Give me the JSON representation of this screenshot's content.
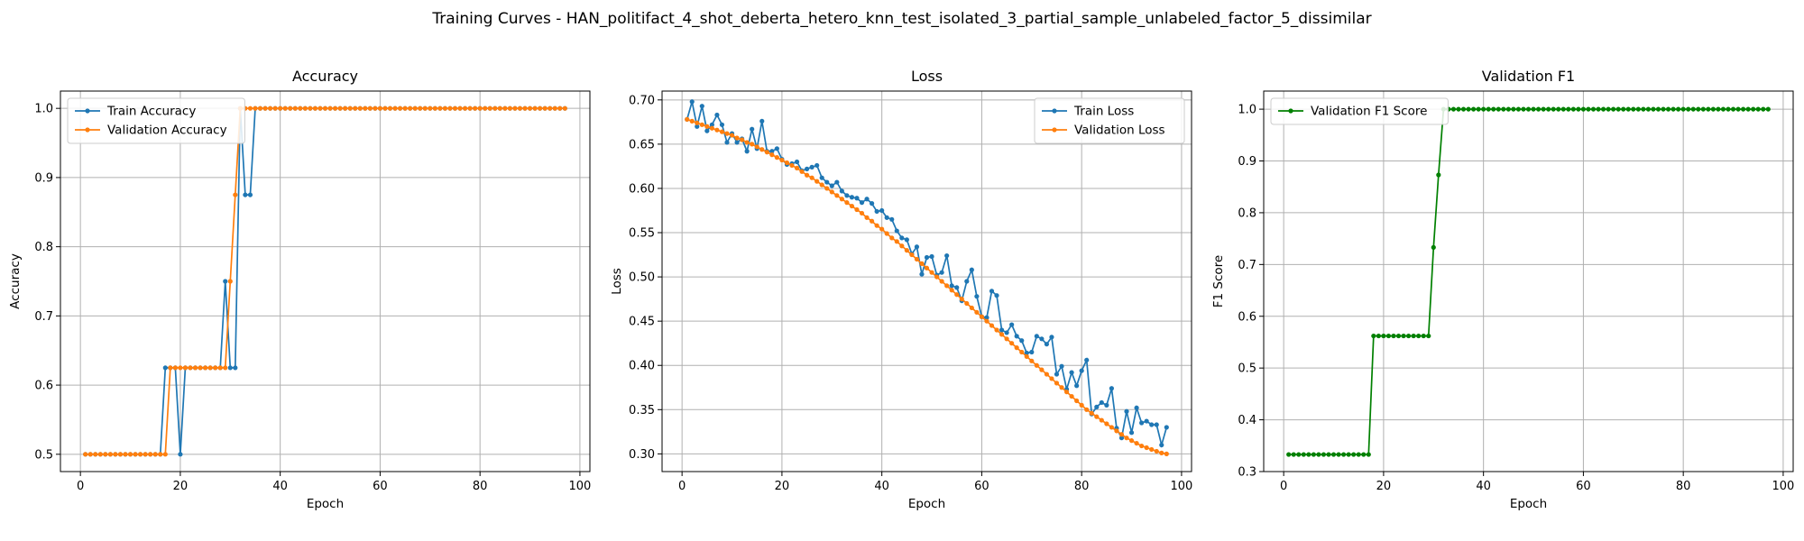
{
  "figure": {
    "suptitle": "Training Curves - HAN_politifact_4_shot_deberta_hetero_knn_test_isolated_3_partial_sample_unlabeled_factor_5_dissimilar"
  },
  "colors": {
    "train": "#1f77b4",
    "validation": "#ff7f0e",
    "f1": "#008000"
  },
  "chart_data": [
    {
      "type": "line",
      "title": "Accuracy",
      "xlabel": "Epoch",
      "ylabel": "Accuracy",
      "xlim": [
        -4,
        102
      ],
      "ylim": [
        0.475,
        1.025
      ],
      "xticks": [
        0,
        20,
        40,
        60,
        80,
        100
      ],
      "yticks": [
        0.5,
        0.6,
        0.7,
        0.8,
        0.9,
        1.0
      ],
      "ytick_labels": [
        "0.5",
        "0.6",
        "0.7",
        "0.8",
        "0.9",
        "1.0"
      ],
      "grid": true,
      "legend": "upper left",
      "series": [
        {
          "name": "Train Accuracy",
          "color": "#1f77b4",
          "x": [
            1,
            2,
            3,
            4,
            5,
            6,
            7,
            8,
            9,
            10,
            11,
            12,
            13,
            14,
            15,
            16,
            17,
            18,
            19,
            20,
            21,
            22,
            23,
            24,
            25,
            26,
            27,
            28,
            29,
            30,
            31,
            32,
            33,
            34,
            35,
            36,
            37,
            38,
            39,
            40,
            41,
            42,
            43,
            44,
            45,
            46,
            47,
            48,
            49,
            50,
            51,
            52,
            53,
            54,
            55,
            56,
            57,
            58,
            59,
            60,
            61,
            62,
            63,
            64,
            65,
            66,
            67,
            68,
            69,
            70,
            71,
            72,
            73,
            74,
            75,
            76,
            77,
            78,
            79,
            80,
            81,
            82,
            83,
            84,
            85,
            86,
            87,
            88,
            89,
            90,
            91,
            92,
            93,
            94,
            95,
            96,
            97
          ],
          "y": [
            0.5,
            0.5,
            0.5,
            0.5,
            0.5,
            0.5,
            0.5,
            0.5,
            0.5,
            0.5,
            0.5,
            0.5,
            0.5,
            0.5,
            0.5,
            0.5,
            0.625,
            0.625,
            0.625,
            0.5,
            0.625,
            0.625,
            0.625,
            0.625,
            0.625,
            0.625,
            0.625,
            0.625,
            0.75,
            0.625,
            0.625,
            1.0,
            0.875,
            0.875,
            1.0,
            1.0,
            1.0,
            1.0,
            1.0,
            1.0,
            1.0,
            1.0,
            1.0,
            1.0,
            1.0,
            1.0,
            1.0,
            1.0,
            1.0,
            1.0,
            1.0,
            1.0,
            1.0,
            1.0,
            1.0,
            1.0,
            1.0,
            1.0,
            1.0,
            1.0,
            1.0,
            1.0,
            1.0,
            1.0,
            1.0,
            1.0,
            1.0,
            1.0,
            1.0,
            1.0,
            1.0,
            1.0,
            1.0,
            1.0,
            1.0,
            1.0,
            1.0,
            1.0,
            1.0,
            1.0,
            1.0,
            1.0,
            1.0,
            1.0,
            1.0,
            1.0,
            1.0,
            1.0,
            1.0,
            1.0,
            1.0,
            1.0,
            1.0,
            1.0,
            1.0,
            1.0,
            1.0
          ]
        },
        {
          "name": "Validation Accuracy",
          "color": "#ff7f0e",
          "x": [
            1,
            2,
            3,
            4,
            5,
            6,
            7,
            8,
            9,
            10,
            11,
            12,
            13,
            14,
            15,
            16,
            17,
            18,
            19,
            20,
            21,
            22,
            23,
            24,
            25,
            26,
            27,
            28,
            29,
            30,
            31,
            32,
            33,
            34,
            35,
            36,
            37,
            38,
            39,
            40,
            41,
            42,
            43,
            44,
            45,
            46,
            47,
            48,
            49,
            50,
            51,
            52,
            53,
            54,
            55,
            56,
            57,
            58,
            59,
            60,
            61,
            62,
            63,
            64,
            65,
            66,
            67,
            68,
            69,
            70,
            71,
            72,
            73,
            74,
            75,
            76,
            77,
            78,
            79,
            80,
            81,
            82,
            83,
            84,
            85,
            86,
            87,
            88,
            89,
            90,
            91,
            92,
            93,
            94,
            95,
            96,
            97
          ],
          "y": [
            0.5,
            0.5,
            0.5,
            0.5,
            0.5,
            0.5,
            0.5,
            0.5,
            0.5,
            0.5,
            0.5,
            0.5,
            0.5,
            0.5,
            0.5,
            0.5,
            0.5,
            0.625,
            0.625,
            0.625,
            0.625,
            0.625,
            0.625,
            0.625,
            0.625,
            0.625,
            0.625,
            0.625,
            0.625,
            0.75,
            0.875,
            1.0,
            1.0,
            1.0,
            1.0,
            1.0,
            1.0,
            1.0,
            1.0,
            1.0,
            1.0,
            1.0,
            1.0,
            1.0,
            1.0,
            1.0,
            1.0,
            1.0,
            1.0,
            1.0,
            1.0,
            1.0,
            1.0,
            1.0,
            1.0,
            1.0,
            1.0,
            1.0,
            1.0,
            1.0,
            1.0,
            1.0,
            1.0,
            1.0,
            1.0,
            1.0,
            1.0,
            1.0,
            1.0,
            1.0,
            1.0,
            1.0,
            1.0,
            1.0,
            1.0,
            1.0,
            1.0,
            1.0,
            1.0,
            1.0,
            1.0,
            1.0,
            1.0,
            1.0,
            1.0,
            1.0,
            1.0,
            1.0,
            1.0,
            1.0,
            1.0,
            1.0,
            1.0,
            1.0,
            1.0,
            1.0,
            1.0
          ]
        }
      ]
    },
    {
      "type": "line",
      "title": "Loss",
      "xlabel": "Epoch",
      "ylabel": "Loss",
      "xlim": [
        -4,
        102
      ],
      "ylim": [
        0.28,
        0.71
      ],
      "xticks": [
        0,
        20,
        40,
        60,
        80,
        100
      ],
      "yticks": [
        0.3,
        0.35,
        0.4,
        0.45,
        0.5,
        0.55,
        0.6,
        0.65,
        0.7
      ],
      "ytick_labels": [
        "0.30",
        "0.35",
        "0.40",
        "0.45",
        "0.50",
        "0.55",
        "0.60",
        "0.65",
        "0.70"
      ],
      "grid": true,
      "legend": "upper right",
      "series": [
        {
          "name": "Train Loss",
          "color": "#1f77b4",
          "x": [
            1,
            2,
            3,
            4,
            5,
            6,
            7,
            8,
            9,
            10,
            11,
            12,
            13,
            14,
            15,
            16,
            17,
            18,
            19,
            20,
            21,
            22,
            23,
            24,
            25,
            26,
            27,
            28,
            29,
            30,
            31,
            32,
            33,
            34,
            35,
            36,
            37,
            38,
            39,
            40,
            41,
            42,
            43,
            44,
            45,
            46,
            47,
            48,
            49,
            50,
            51,
            52,
            53,
            54,
            55,
            56,
            57,
            58,
            59,
            60,
            61,
            62,
            63,
            64,
            65,
            66,
            67,
            68,
            69,
            70,
            71,
            72,
            73,
            74,
            75,
            76,
            77,
            78,
            79,
            80,
            81,
            82,
            83,
            84,
            85,
            86,
            87,
            88,
            89,
            90,
            91,
            92,
            93,
            94,
            95,
            96,
            97
          ],
          "y": [
            0.678,
            0.698,
            0.67,
            0.693,
            0.665,
            0.672,
            0.683,
            0.672,
            0.652,
            0.662,
            0.652,
            0.656,
            0.642,
            0.667,
            0.645,
            0.676,
            0.642,
            0.642,
            0.645,
            0.633,
            0.627,
            0.628,
            0.63,
            0.62,
            0.622,
            0.624,
            0.626,
            0.612,
            0.607,
            0.603,
            0.607,
            0.597,
            0.592,
            0.59,
            0.589,
            0.584,
            0.588,
            0.583,
            0.574,
            0.575,
            0.567,
            0.565,
            0.552,
            0.544,
            0.542,
            0.526,
            0.534,
            0.503,
            0.522,
            0.523,
            0.502,
            0.505,
            0.524,
            0.49,
            0.488,
            0.473,
            0.495,
            0.508,
            0.478,
            0.455,
            0.454,
            0.484,
            0.479,
            0.44,
            0.437,
            0.446,
            0.433,
            0.428,
            0.414,
            0.415,
            0.433,
            0.43,
            0.424,
            0.432,
            0.39,
            0.399,
            0.373,
            0.392,
            0.377,
            0.394,
            0.406,
            0.345,
            0.353,
            0.358,
            0.355,
            0.374,
            0.329,
            0.318,
            0.348,
            0.324,
            0.352,
            0.335,
            0.337,
            0.333,
            0.333,
            0.31,
            0.33
          ]
        },
        {
          "name": "Validation Loss",
          "color": "#ff7f0e",
          "x": [
            1,
            2,
            3,
            4,
            5,
            6,
            7,
            8,
            9,
            10,
            11,
            12,
            13,
            14,
            15,
            16,
            17,
            18,
            19,
            20,
            21,
            22,
            23,
            24,
            25,
            26,
            27,
            28,
            29,
            30,
            31,
            32,
            33,
            34,
            35,
            36,
            37,
            38,
            39,
            40,
            41,
            42,
            43,
            44,
            45,
            46,
            47,
            48,
            49,
            50,
            51,
            52,
            53,
            54,
            55,
            56,
            57,
            58,
            59,
            60,
            61,
            62,
            63,
            64,
            65,
            66,
            67,
            68,
            69,
            70,
            71,
            72,
            73,
            74,
            75,
            76,
            77,
            78,
            79,
            80,
            81,
            82,
            83,
            84,
            85,
            86,
            87,
            88,
            89,
            90,
            91,
            92,
            93,
            94,
            95,
            96,
            97
          ],
          "y": [
            0.678,
            0.676,
            0.674,
            0.672,
            0.67,
            0.668,
            0.666,
            0.664,
            0.662,
            0.66,
            0.657,
            0.655,
            0.652,
            0.65,
            0.647,
            0.644,
            0.641,
            0.638,
            0.635,
            0.632,
            0.629,
            0.626,
            0.623,
            0.619,
            0.615,
            0.612,
            0.608,
            0.604,
            0.6,
            0.596,
            0.592,
            0.588,
            0.584,
            0.58,
            0.576,
            0.572,
            0.567,
            0.563,
            0.558,
            0.554,
            0.549,
            0.544,
            0.54,
            0.535,
            0.53,
            0.525,
            0.52,
            0.515,
            0.51,
            0.505,
            0.5,
            0.495,
            0.49,
            0.485,
            0.48,
            0.475,
            0.47,
            0.465,
            0.46,
            0.455,
            0.45,
            0.445,
            0.44,
            0.435,
            0.43,
            0.425,
            0.42,
            0.415,
            0.41,
            0.405,
            0.4,
            0.395,
            0.39,
            0.385,
            0.38,
            0.375,
            0.37,
            0.365,
            0.36,
            0.355,
            0.35,
            0.346,
            0.342,
            0.338,
            0.334,
            0.33,
            0.326,
            0.322,
            0.318,
            0.315,
            0.312,
            0.309,
            0.307,
            0.305,
            0.303,
            0.301,
            0.3
          ]
        }
      ]
    },
    {
      "type": "line",
      "title": "Validation F1",
      "xlabel": "Epoch",
      "ylabel": "F1 Score",
      "xlim": [
        -4,
        102
      ],
      "ylim": [
        0.3,
        1.035
      ],
      "xticks": [
        0,
        20,
        40,
        60,
        80,
        100
      ],
      "yticks": [
        0.3,
        0.4,
        0.5,
        0.6,
        0.7,
        0.8,
        0.9,
        1.0
      ],
      "ytick_labels": [
        "0.3",
        "0.4",
        "0.5",
        "0.6",
        "0.7",
        "0.8",
        "0.9",
        "1.0"
      ],
      "grid": true,
      "legend": "upper left",
      "series": [
        {
          "name": "Validation F1 Score",
          "color": "#008000",
          "x": [
            1,
            2,
            3,
            4,
            5,
            6,
            7,
            8,
            9,
            10,
            11,
            12,
            13,
            14,
            15,
            16,
            17,
            18,
            19,
            20,
            21,
            22,
            23,
            24,
            25,
            26,
            27,
            28,
            29,
            30,
            31,
            32,
            33,
            34,
            35,
            36,
            37,
            38,
            39,
            40,
            41,
            42,
            43,
            44,
            45,
            46,
            47,
            48,
            49,
            50,
            51,
            52,
            53,
            54,
            55,
            56,
            57,
            58,
            59,
            60,
            61,
            62,
            63,
            64,
            65,
            66,
            67,
            68,
            69,
            70,
            71,
            72,
            73,
            74,
            75,
            76,
            77,
            78,
            79,
            80,
            81,
            82,
            83,
            84,
            85,
            86,
            87,
            88,
            89,
            90,
            91,
            92,
            93,
            94,
            95,
            96,
            97
          ],
          "y": [
            0.333,
            0.333,
            0.333,
            0.333,
            0.333,
            0.333,
            0.333,
            0.333,
            0.333,
            0.333,
            0.333,
            0.333,
            0.333,
            0.333,
            0.333,
            0.333,
            0.333,
            0.562,
            0.562,
            0.562,
            0.562,
            0.562,
            0.562,
            0.562,
            0.562,
            0.562,
            0.562,
            0.562,
            0.562,
            0.733,
            0.873,
            1.0,
            1.0,
            1.0,
            1.0,
            1.0,
            1.0,
            1.0,
            1.0,
            1.0,
            1.0,
            1.0,
            1.0,
            1.0,
            1.0,
            1.0,
            1.0,
            1.0,
            1.0,
            1.0,
            1.0,
            1.0,
            1.0,
            1.0,
            1.0,
            1.0,
            1.0,
            1.0,
            1.0,
            1.0,
            1.0,
            1.0,
            1.0,
            1.0,
            1.0,
            1.0,
            1.0,
            1.0,
            1.0,
            1.0,
            1.0,
            1.0,
            1.0,
            1.0,
            1.0,
            1.0,
            1.0,
            1.0,
            1.0,
            1.0,
            1.0,
            1.0,
            1.0,
            1.0,
            1.0,
            1.0,
            1.0,
            1.0,
            1.0,
            1.0,
            1.0,
            1.0,
            1.0,
            1.0,
            1.0,
            1.0,
            1.0
          ]
        }
      ]
    }
  ]
}
